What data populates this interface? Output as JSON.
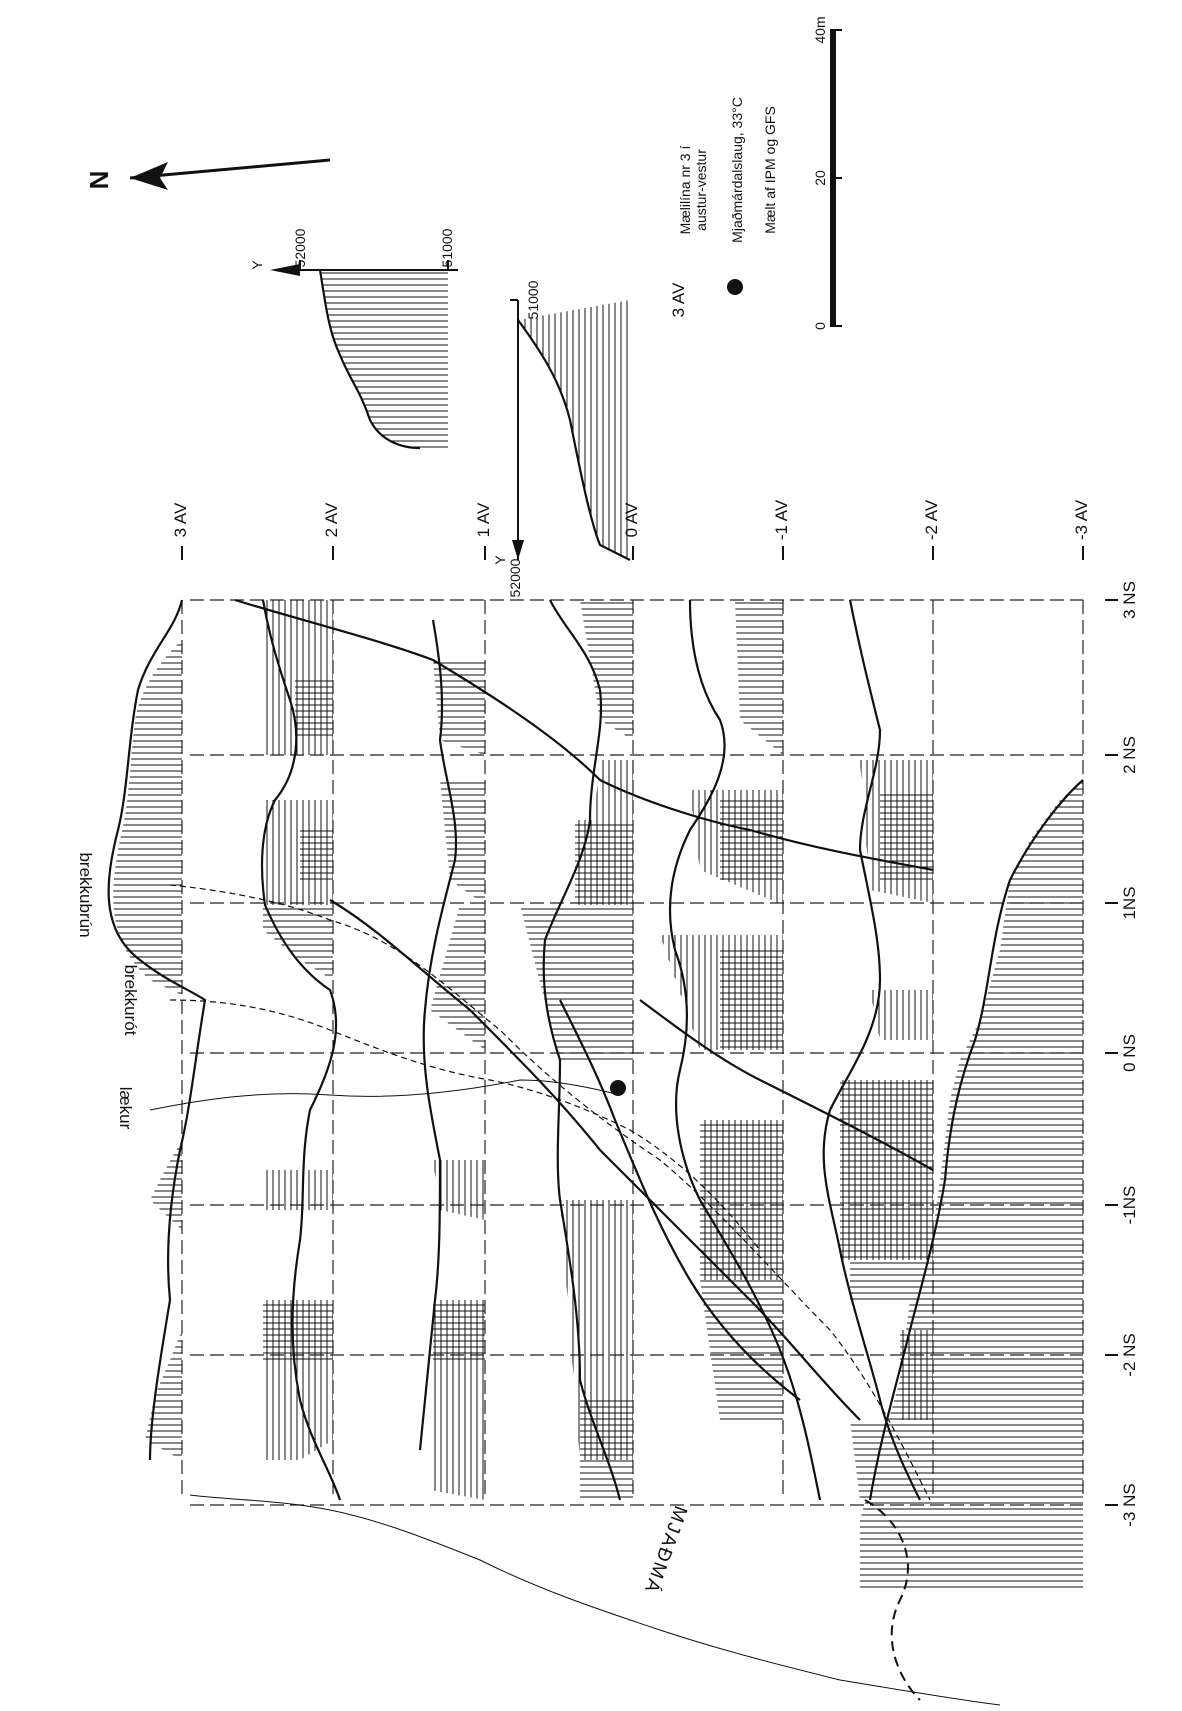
{
  "map": {
    "north_label": "N",
    "river_label": "MJAÐMÁ",
    "feature_labels": [
      "brekkubrún",
      "brekkurót",
      "lækur"
    ],
    "av_lines": [
      "3 AV",
      "2 AV",
      "1 AV",
      "0 AV",
      "-1 AV",
      "-2 AV",
      "-3 AV"
    ],
    "ns_lines": [
      "3 NS",
      "2 NS",
      "1NS",
      "0 NS",
      "-1NS",
      "-2 NS",
      "-3 NS"
    ]
  },
  "profiles": {
    "left": {
      "axis_label": "Y",
      "ticks": [
        "52000",
        "51000"
      ]
    },
    "right": {
      "axis_label": "Y",
      "ticks": [
        "52000",
        "51000"
      ]
    }
  },
  "legend": {
    "line_key": "3 AV",
    "line_desc_1": "Mælilína nr 3 í",
    "line_desc_2": "austur-vestur",
    "spring_desc": "Mjaðmárdalslaug, 33°C",
    "measured_by": "Mælt af IPM og GFS"
  },
  "scale": {
    "ticks": [
      "0",
      "20",
      "40m"
    ]
  },
  "colors": {
    "ink": "#111111",
    "paper": "#ffffff"
  }
}
